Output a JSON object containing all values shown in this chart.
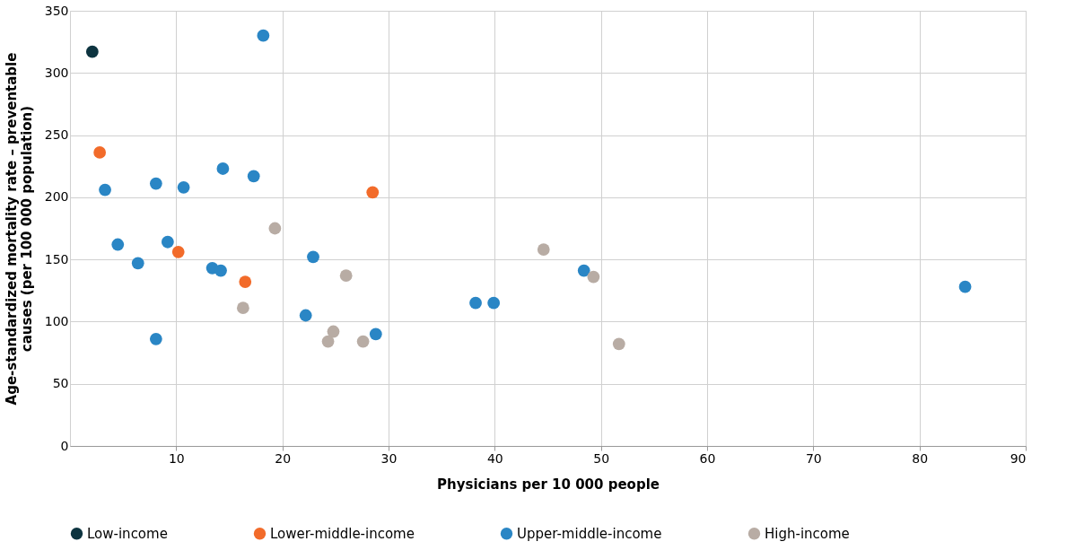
{
  "chart_data": {
    "type": "scatter",
    "xlabel": "Physicians per 10 000 people",
    "ylabel": "Age-standardized mortality rate – preventable\ncauses (per 100 000 population)",
    "xlim": [
      0,
      90
    ],
    "xticks": [
      10,
      20,
      30,
      40,
      50,
      60,
      70,
      80,
      90
    ],
    "ylim": [
      0,
      350
    ],
    "yticks": [
      0,
      50,
      100,
      150,
      200,
      250,
      300,
      350
    ],
    "grid": true,
    "legend": "bottom",
    "marker": "circle",
    "series": [
      {
        "name": "Low-income",
        "color": "#0d3440",
        "x": [
          2.1
        ],
        "values": [
          317
        ]
      },
      {
        "name": "Lower-middle-income",
        "color": "#f26b2a",
        "x": [
          2.8,
          10.2,
          16.5,
          28.5
        ],
        "values": [
          236,
          156,
          132,
          204
        ]
      },
      {
        "name": "Upper-middle-income",
        "color": "#2a86c5",
        "x": [
          18.2,
          3.3,
          8.1,
          10.7,
          14.4,
          17.3,
          4.5,
          9.2,
          6.4,
          13.4,
          14.2,
          22.9,
          8.1,
          22.2,
          28.8,
          38.2,
          39.9,
          48.4,
          84.3
        ],
        "values": [
          330,
          206,
          211,
          208,
          223,
          217,
          162,
          164,
          147,
          143,
          141,
          152,
          86,
          105,
          90,
          115,
          115,
          141,
          128
        ]
      },
      {
        "name": "High-income",
        "color": "#b8aca4",
        "x": [
          19.3,
          26.0,
          16.3,
          24.8,
          24.3,
          27.6,
          44.6,
          49.3,
          51.7
        ],
        "values": [
          175,
          137,
          111,
          92,
          84,
          84,
          158,
          136,
          82
        ]
      }
    ]
  }
}
